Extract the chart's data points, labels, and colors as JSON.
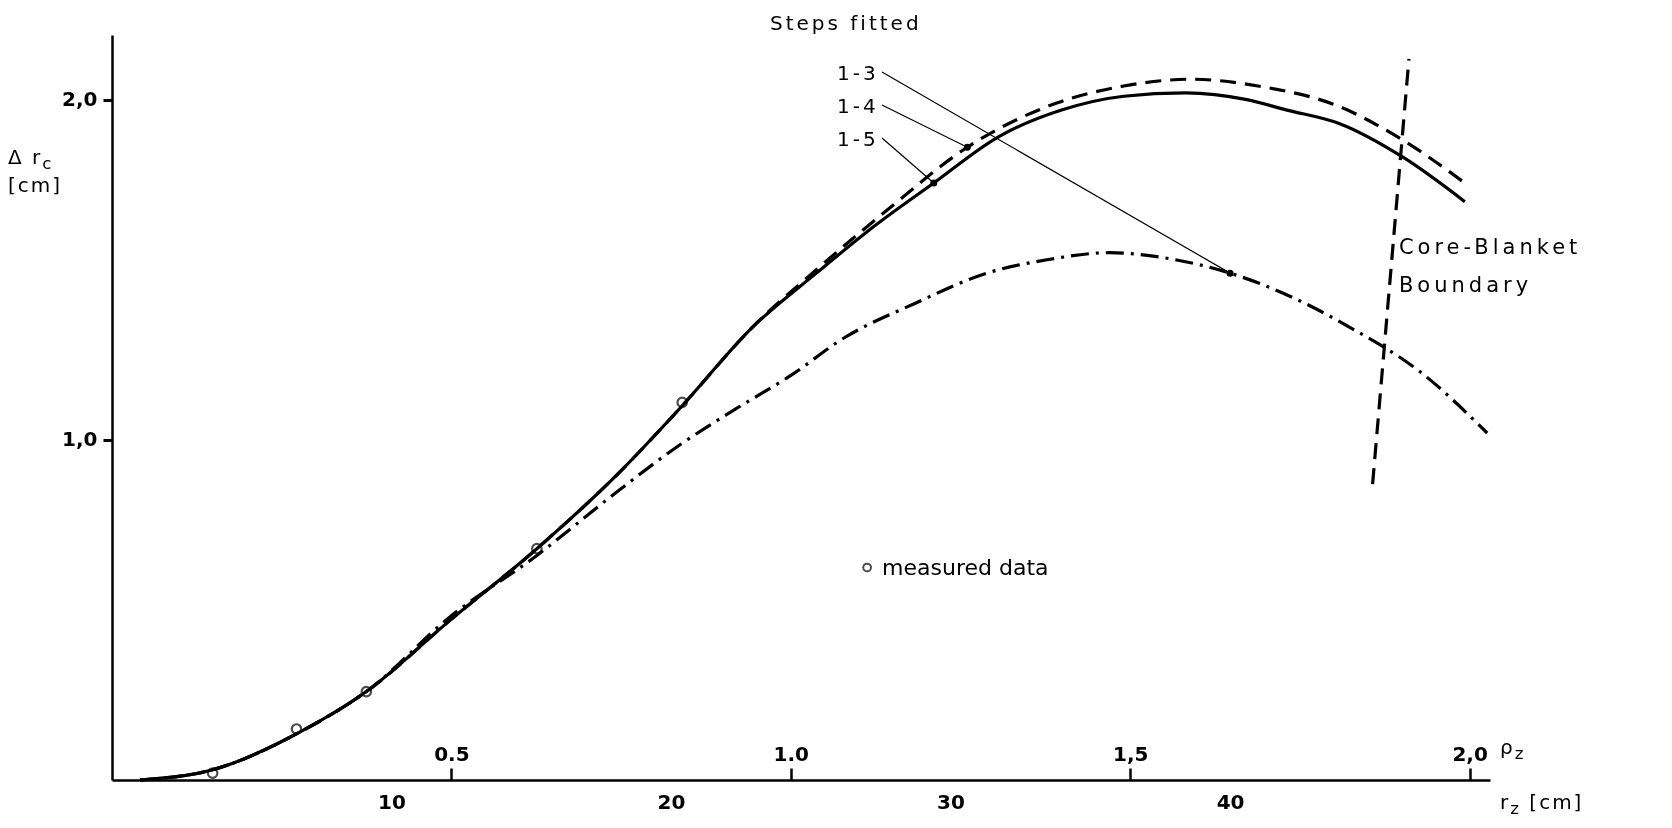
{
  "chart_data": {
    "type": "line",
    "legend_title": "Steps fitted",
    "xlabel": "r$_{z}$ [cm]",
    "ylabel": "Δ r$_{c}$ [cm]",
    "x2label": "ρ$_{z}$",
    "xlim": [
      0,
      49.3
    ],
    "ylim": [
      0,
      2.19
    ],
    "xticks": [
      10,
      20,
      30,
      40
    ],
    "yticks": [
      {
        "value": 1,
        "label": "1,0"
      },
      {
        "value": 2,
        "label": "2,0"
      }
    ],
    "x2lim": [
      0,
      2.03
    ],
    "x2ticks": [
      0.5,
      {
        "value": 1,
        "label": "1.0"
      },
      {
        "value": 1.5,
        "label": "1,5"
      },
      {
        "value": 2,
        "label": "2,0"
      }
    ],
    "legend": "bottom",
    "series": [
      {
        "name": "1-3",
        "line_style": "dashdot",
        "color": "#000000",
        "x": [
          1.0,
          3.6,
          6.7,
          9.1,
          12.1,
          15.2,
          17.8,
          20.4,
          22.3,
          24.3,
          26.2,
          28.7,
          31.3,
          33.5,
          35.7,
          38.0,
          40.0,
          42.2,
          44.3,
          46.8,
          49.2
        ],
        "values": [
          0,
          0.03,
          0.14,
          0.26,
          0.48,
          0.66,
          0.83,
          0.99,
          1.09,
          1.19,
          1.3,
          1.4,
          1.49,
          1.53,
          1.55,
          1.53,
          1.49,
          1.42,
          1.33,
          1.2,
          1.02
        ]
      },
      {
        "name": "1-4",
        "line_style": "dashed",
        "color": "#000000",
        "x": [
          1.0,
          3.6,
          6.7,
          9.1,
          12.1,
          15.2,
          18.1,
          20.4,
          22.9,
          25.2,
          27.8,
          30.6,
          33.8,
          36.2,
          38.6,
          41.0,
          43.9,
          46.2,
          48.4
        ],
        "values": [
          0,
          0.03,
          0.14,
          0.26,
          0.47,
          0.68,
          0.9,
          1.1,
          1.33,
          1.5,
          1.68,
          1.86,
          1.99,
          2.04,
          2.06,
          2.04,
          1.98,
          1.88,
          1.755
        ]
      },
      {
        "name": "1-5",
        "line_style": "solid",
        "color": "#000000",
        "x": [
          1.0,
          3.6,
          6.7,
          9.1,
          12.1,
          15.2,
          18.1,
          20.4,
          22.9,
          25.2,
          27.3,
          29.4,
          31.7,
          34.0,
          36.2,
          38.4,
          40.6,
          42.0,
          43.9,
          46.2,
          48.4
        ],
        "values": [
          0,
          0.03,
          0.14,
          0.26,
          0.47,
          0.68,
          0.9,
          1.1,
          1.33,
          1.49,
          1.63,
          1.755,
          1.89,
          1.97,
          2.01,
          2.02,
          2.0,
          1.97,
          1.93,
          1.83,
          1.7
        ]
      },
      {
        "name": "measured data",
        "type": "scatter",
        "marker": "circle",
        "color": "#000000",
        "x": [
          3.6,
          6.6,
          9.1,
          15.2,
          20.4
        ],
        "values": [
          0.02,
          0.15,
          0.26,
          0.68,
          1.11
        ]
      },
      {
        "name": "Core-Blanket Boundary",
        "line_style": "dashed",
        "color": "#000000",
        "x": [
          45.1,
          46.4
        ],
        "values": [
          0.87,
          2.12
        ]
      }
    ]
  }
}
